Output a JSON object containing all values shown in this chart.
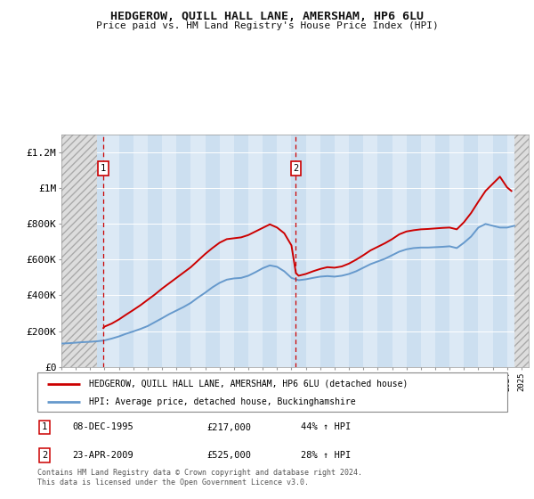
{
  "title": "HEDGEROW, QUILL HALL LANE, AMERSHAM, HP6 6LU",
  "subtitle": "Price paid vs. HM Land Registry's House Price Index (HPI)",
  "ylabel_ticks": [
    "£0",
    "£200K",
    "£400K",
    "£600K",
    "£800K",
    "£1M",
    "£1.2M"
  ],
  "ytick_vals": [
    0,
    200000,
    400000,
    600000,
    800000,
    1000000,
    1200000
  ],
  "ylim": [
    0,
    1300000
  ],
  "xlim_start": 1993.0,
  "xlim_end": 2025.5,
  "background_color": "#ffffff",
  "plot_bg_color": "#dce9f5",
  "col_odd_color": "#ccdff0",
  "grid_color": "#ffffff",
  "red_line_color": "#cc0000",
  "blue_line_color": "#6699cc",
  "transaction1_x": 1995.92,
  "transaction1_price": 217000,
  "transaction2_x": 2009.31,
  "transaction2_price": 525000,
  "legend_label_red": "HEDGEROW, QUILL HALL LANE, AMERSHAM, HP6 6LU (detached house)",
  "legend_label_blue": "HPI: Average price, detached house, Buckinghamshire",
  "footer_text": "Contains HM Land Registry data © Crown copyright and database right 2024.\nThis data is licensed under the Open Government Licence v3.0.",
  "table_row1": [
    "1",
    "08-DEC-1995",
    "£217,000",
    "44% ↑ HPI"
  ],
  "table_row2": [
    "2",
    "23-APR-2009",
    "£525,000",
    "28% ↑ HPI"
  ],
  "hpi_data_x": [
    1993.0,
    1993.5,
    1994.0,
    1994.5,
    1995.0,
    1995.5,
    1996.0,
    1996.5,
    1997.0,
    1997.5,
    1998.0,
    1998.5,
    1999.0,
    1999.5,
    2000.0,
    2000.5,
    2001.0,
    2001.5,
    2002.0,
    2002.5,
    2003.0,
    2003.5,
    2004.0,
    2004.5,
    2005.0,
    2005.5,
    2006.0,
    2006.5,
    2007.0,
    2007.5,
    2008.0,
    2008.5,
    2009.0,
    2009.5,
    2010.0,
    2010.5,
    2011.0,
    2011.5,
    2012.0,
    2012.5,
    2013.0,
    2013.5,
    2014.0,
    2014.5,
    2015.0,
    2015.5,
    2016.0,
    2016.5,
    2017.0,
    2017.5,
    2018.0,
    2018.5,
    2019.0,
    2019.5,
    2020.0,
    2020.5,
    2021.0,
    2021.5,
    2022.0,
    2022.5,
    2023.0,
    2023.5,
    2024.0,
    2024.5
  ],
  "hpi_data_y": [
    130000,
    132000,
    135000,
    138000,
    140000,
    143000,
    148000,
    158000,
    170000,
    185000,
    198000,
    212000,
    228000,
    250000,
    272000,
    295000,
    315000,
    335000,
    358000,
    388000,
    415000,
    445000,
    470000,
    488000,
    495000,
    498000,
    510000,
    530000,
    552000,
    568000,
    560000,
    535000,
    498000,
    485000,
    490000,
    498000,
    505000,
    508000,
    505000,
    510000,
    520000,
    535000,
    555000,
    575000,
    590000,
    605000,
    625000,
    645000,
    658000,
    665000,
    668000,
    668000,
    670000,
    672000,
    675000,
    665000,
    695000,
    730000,
    780000,
    800000,
    790000,
    780000,
    780000,
    790000
  ],
  "price_data_x": [
    1995.92,
    1996.0,
    1996.5,
    1997.0,
    1997.5,
    1998.0,
    1998.5,
    1999.0,
    1999.5,
    2000.0,
    2000.5,
    2001.0,
    2001.5,
    2002.0,
    2002.5,
    2003.0,
    2003.5,
    2004.0,
    2004.5,
    2005.0,
    2005.5,
    2006.0,
    2006.5,
    2007.0,
    2007.5,
    2008.0,
    2008.5,
    2009.0,
    2009.31,
    2009.5,
    2010.0,
    2010.5,
    2011.0,
    2011.5,
    2012.0,
    2012.5,
    2013.0,
    2013.5,
    2014.0,
    2014.5,
    2015.0,
    2015.5,
    2016.0,
    2016.5,
    2017.0,
    2017.5,
    2018.0,
    2018.5,
    2019.0,
    2019.5,
    2020.0,
    2020.5,
    2021.0,
    2021.5,
    2022.0,
    2022.5,
    2023.0,
    2023.5,
    2024.0,
    2024.3
  ],
  "price_data_y": [
    217000,
    225000,
    242000,
    265000,
    292000,
    318000,
    345000,
    375000,
    405000,
    438000,
    468000,
    498000,
    528000,
    558000,
    595000,
    632000,
    665000,
    695000,
    715000,
    720000,
    725000,
    738000,
    758000,
    778000,
    798000,
    780000,
    748000,
    680000,
    525000,
    510000,
    520000,
    535000,
    548000,
    558000,
    555000,
    562000,
    578000,
    600000,
    625000,
    652000,
    672000,
    692000,
    715000,
    742000,
    758000,
    765000,
    770000,
    772000,
    775000,
    778000,
    780000,
    770000,
    810000,
    862000,
    925000,
    985000,
    1025000,
    1065000,
    1005000,
    985000
  ]
}
